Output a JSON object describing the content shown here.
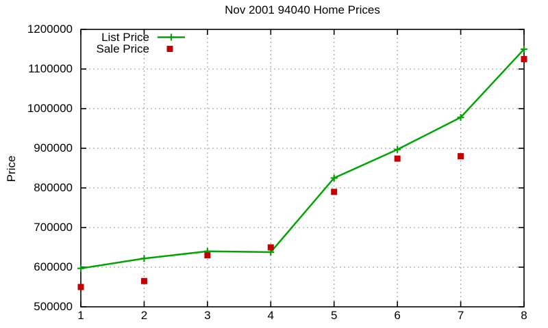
{
  "chart_data": {
    "type": "line",
    "title": "Nov 2001 94040 Home Prices",
    "xlabel": "",
    "ylabel": "Price",
    "x": [
      1,
      2,
      3,
      4,
      5,
      6,
      7,
      8
    ],
    "series": [
      {
        "name": "List Price",
        "color": "#00a400",
        "marker": "plus",
        "line": true,
        "values": [
          597000,
          622000,
          640000,
          638000,
          825000,
          897000,
          978000,
          1150000
        ]
      },
      {
        "name": "Sale Price",
        "color": "#c40000",
        "marker": "square",
        "line": false,
        "values": [
          550000,
          565000,
          630000,
          650000,
          790000,
          874000,
          880000,
          1125000
        ]
      }
    ],
    "xlim": [
      1,
      8
    ],
    "ylim": [
      500000,
      1200000
    ],
    "xticks": [
      1,
      2,
      3,
      4,
      5,
      6,
      7,
      8
    ],
    "yticks": [
      500000,
      600000,
      700000,
      800000,
      900000,
      1000000,
      1100000,
      1200000
    ],
    "grid": true,
    "grid_color": "#a8a8a8",
    "axis_color": "#000000",
    "background_color": "#ffffff",
    "legend_position": "top-left-inside",
    "legend": [
      "List Price",
      "Sale Price"
    ]
  }
}
